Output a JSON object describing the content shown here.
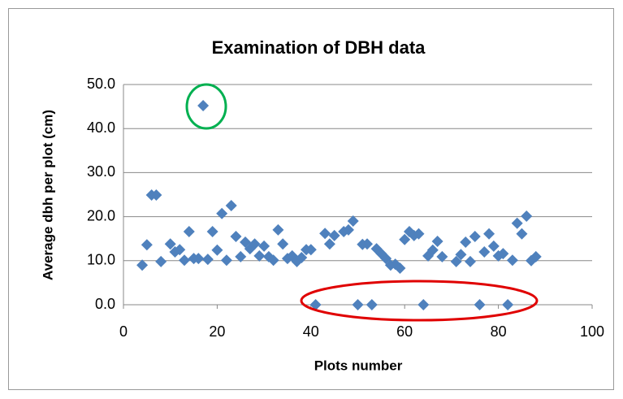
{
  "chart_data": {
    "type": "scatter",
    "title": "Examination of DBH data",
    "x_label": "Plots number",
    "y_label": "Average dbh per plot (cm)",
    "color": "#4f81bd",
    "grid": true,
    "xlim": [
      0,
      100
    ],
    "xticks": [
      0,
      20,
      40,
      60,
      80,
      100
    ],
    "ylim": [
      0,
      50
    ],
    "yticks": [
      {
        "value": 0,
        "label": "0.0"
      },
      {
        "value": 10,
        "label": "10.0"
      },
      {
        "value": 20,
        "label": "20.0"
      },
      {
        "value": 30,
        "label": "30.0"
      },
      {
        "value": 40,
        "label": "40.0"
      },
      {
        "value": 50,
        "label": "50.0"
      }
    ],
    "x": [
      4,
      5,
      6,
      7,
      8,
      10,
      11,
      12,
      13,
      14,
      15,
      16,
      17,
      18,
      19,
      20,
      21,
      22,
      23,
      24,
      25,
      26,
      27,
      28,
      29,
      30,
      31,
      32,
      33,
      34,
      35,
      36,
      37,
      38,
      39,
      40,
      41,
      43,
      44,
      45,
      47,
      48,
      49,
      50,
      51,
      52,
      53,
      54,
      55,
      56,
      57,
      58,
      59,
      60,
      61,
      62,
      63,
      64,
      65,
      66,
      67,
      68,
      71,
      72,
      73,
      74,
      75,
      76,
      77,
      78,
      79,
      80,
      81,
      82,
      83,
      84,
      85,
      86,
      87,
      88
    ],
    "values": [
      9.0,
      13.6,
      24.9,
      24.9,
      9.8,
      13.8,
      12.0,
      12.5,
      10.1,
      16.6,
      10.5,
      10.5,
      45.2,
      10.3,
      16.6,
      12.4,
      20.7,
      10.1,
      22.5,
      15.5,
      10.9,
      14.2,
      12.7,
      13.8,
      11.1,
      13.3,
      10.9,
      10.1,
      17.0,
      13.8,
      10.5,
      11.1,
      9.8,
      10.7,
      12.5,
      12.5,
      0,
      16.2,
      13.8,
      15.7,
      16.6,
      17.0,
      19.0,
      0,
      13.7,
      13.8,
      0,
      12.7,
      11.6,
      10.5,
      9.0,
      9.2,
      8.3,
      14.8,
      16.6,
      15.7,
      16.1,
      0,
      11.1,
      12.4,
      14.4,
      10.9,
      9.8,
      11.4,
      14.2,
      9.8,
      15.5,
      0,
      12.0,
      16.1,
      13.3,
      11.1,
      11.6,
      0,
      10.1,
      18.5,
      16.1,
      20.1,
      10.0,
      10.9
    ]
  }
}
